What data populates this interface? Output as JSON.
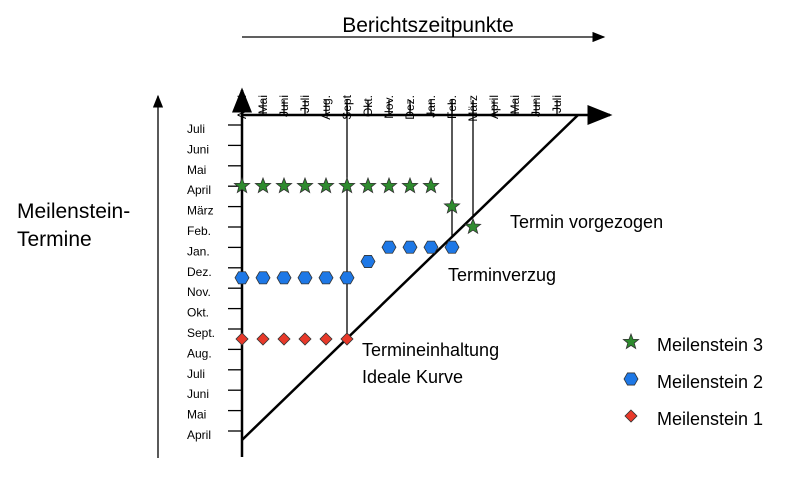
{
  "x_axis": {
    "title": "Berichtszeitpunkte",
    "ticks": [
      "April",
      "Mai",
      "Juni",
      "Juli",
      "Aug.",
      "Sept",
      "Okt.",
      "Nov.",
      "Dez.",
      "Jan.",
      "Feb.",
      "März",
      "April",
      "Mai",
      "Juni",
      "Juli"
    ]
  },
  "y_axis": {
    "title_line1": "Meilenstein-",
    "title_line2": "Termine",
    "ticks": [
      "April",
      "Mai",
      "Juni",
      "Juli",
      "Aug.",
      "Sept.",
      "Okt.",
      "Nov.",
      "Dez.",
      "Jan.",
      "Feb.",
      "März",
      "April",
      "Mai",
      "Juni",
      "Juli"
    ]
  },
  "annotations": {
    "termin_vorgezogen": "Termin vorgezogen",
    "terminverzug": "Terminverzug",
    "termineinhaltung": "Termineinhaltung",
    "ideale_kurve": "Ideale Kurve"
  },
  "legend": [
    {
      "label": "Meilenstein 3",
      "marker": "star",
      "color": "#2e8b2e"
    },
    {
      "label": "Meilenstein 2",
      "marker": "hexagon",
      "color": "#1e78e6"
    },
    {
      "label": "Meilenstein 1",
      "marker": "diamond",
      "color": "#e8392a"
    }
  ],
  "chart_data": {
    "type": "scatter",
    "description_units": "x = report index (0 = April), y = milestone date index (0 = April)",
    "series": [
      {
        "name": "Meilenstein 1",
        "x": [
          0,
          1,
          2,
          3,
          4,
          5
        ],
        "y": [
          5,
          5,
          5,
          5,
          5,
          5
        ]
      },
      {
        "name": "Meilenstein 2",
        "x": [
          0,
          1,
          2,
          3,
          4,
          5,
          6,
          7,
          8,
          9,
          10
        ],
        "y": [
          8,
          8,
          8,
          8,
          8,
          8,
          8.8,
          9.5,
          9.5,
          9.5,
          9.5
        ]
      },
      {
        "name": "Meilenstein 3",
        "x": [
          0,
          1,
          2,
          3,
          4,
          5,
          6,
          7,
          8,
          9,
          10,
          11
        ],
        "y": [
          12.5,
          12.5,
          12.5,
          12.5,
          12.5,
          12.5,
          12.5,
          12.5,
          12.5,
          12.5,
          11.5,
          10.5
        ]
      }
    ]
  }
}
